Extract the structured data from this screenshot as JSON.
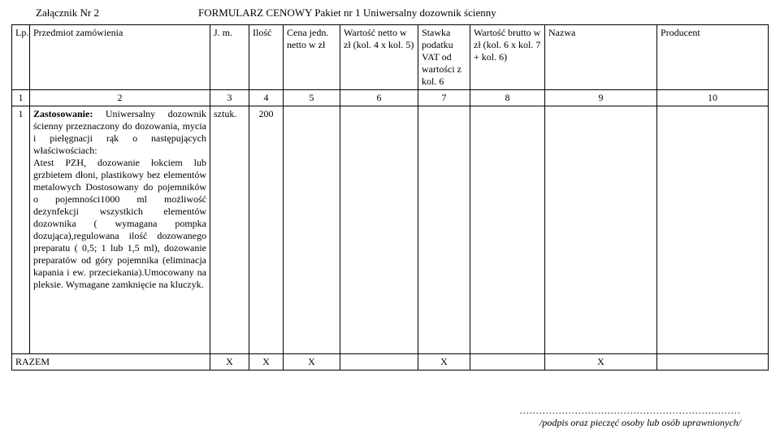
{
  "header": {
    "attachment": "Załącznik Nr 2",
    "title": "FORMULARZ  CENOWY  Pakiet nr  1  Uniwersalny dozownik ścienny"
  },
  "columns": {
    "lp": "Lp.",
    "item": "Przedmiot zamówienia",
    "jm": "J. m.",
    "qty": "Ilość",
    "unit": "Cena jedn. netto w zł",
    "net": "Wartość netto w zł (kol. 4 x kol. 5)",
    "vat": "Stawka podatku VAT od wartości z kol. 6",
    "gross": "Wartość brutto w zł (kol. 6 x kol. 7 + kol. 6)",
    "name": "Nazwa",
    "producer": "Producent"
  },
  "numbers": {
    "c1": "1",
    "c2": "2",
    "c3": "3",
    "c4": "4",
    "c5": "5",
    "c6": "6",
    "c7": "7",
    "c8": "8",
    "c9": "9",
    "c10": "10"
  },
  "row1": {
    "lp": "1",
    "text_strong": "Zastosowanie:",
    "text_after_strong": " Uniwersalny dozownik ścienny przeznaczony do dozowania, mycia i pielęgnacji rąk o następujących właściwościach:",
    "text_body": "Atest PZH, dozowanie łokciem lub grzbietem dłoni, plastikowy bez elementów metalowych Dostosowany do pojemników o pojemności1000 ml możliwość dezynfekcji wszystkich elementów dozownika ( wymagana pompka dozująca),regulowana ilość dozowanego preparatu ( 0,5; 1 lub 1,5 ml), dozowanie preparatów od góry pojemnika (eliminacja kapania i ew. przeciekania).Umocowany na pleksie. Wymagane zamknięcie na kluczyk.",
    "jm": "sztuk.",
    "qty": "200"
  },
  "summary": {
    "label": "RAZEM",
    "x": "X"
  },
  "signature": {
    "dots": "....................................................................",
    "text": "/podpis oraz pieczęć osoby lub osób uprawnionych/"
  }
}
